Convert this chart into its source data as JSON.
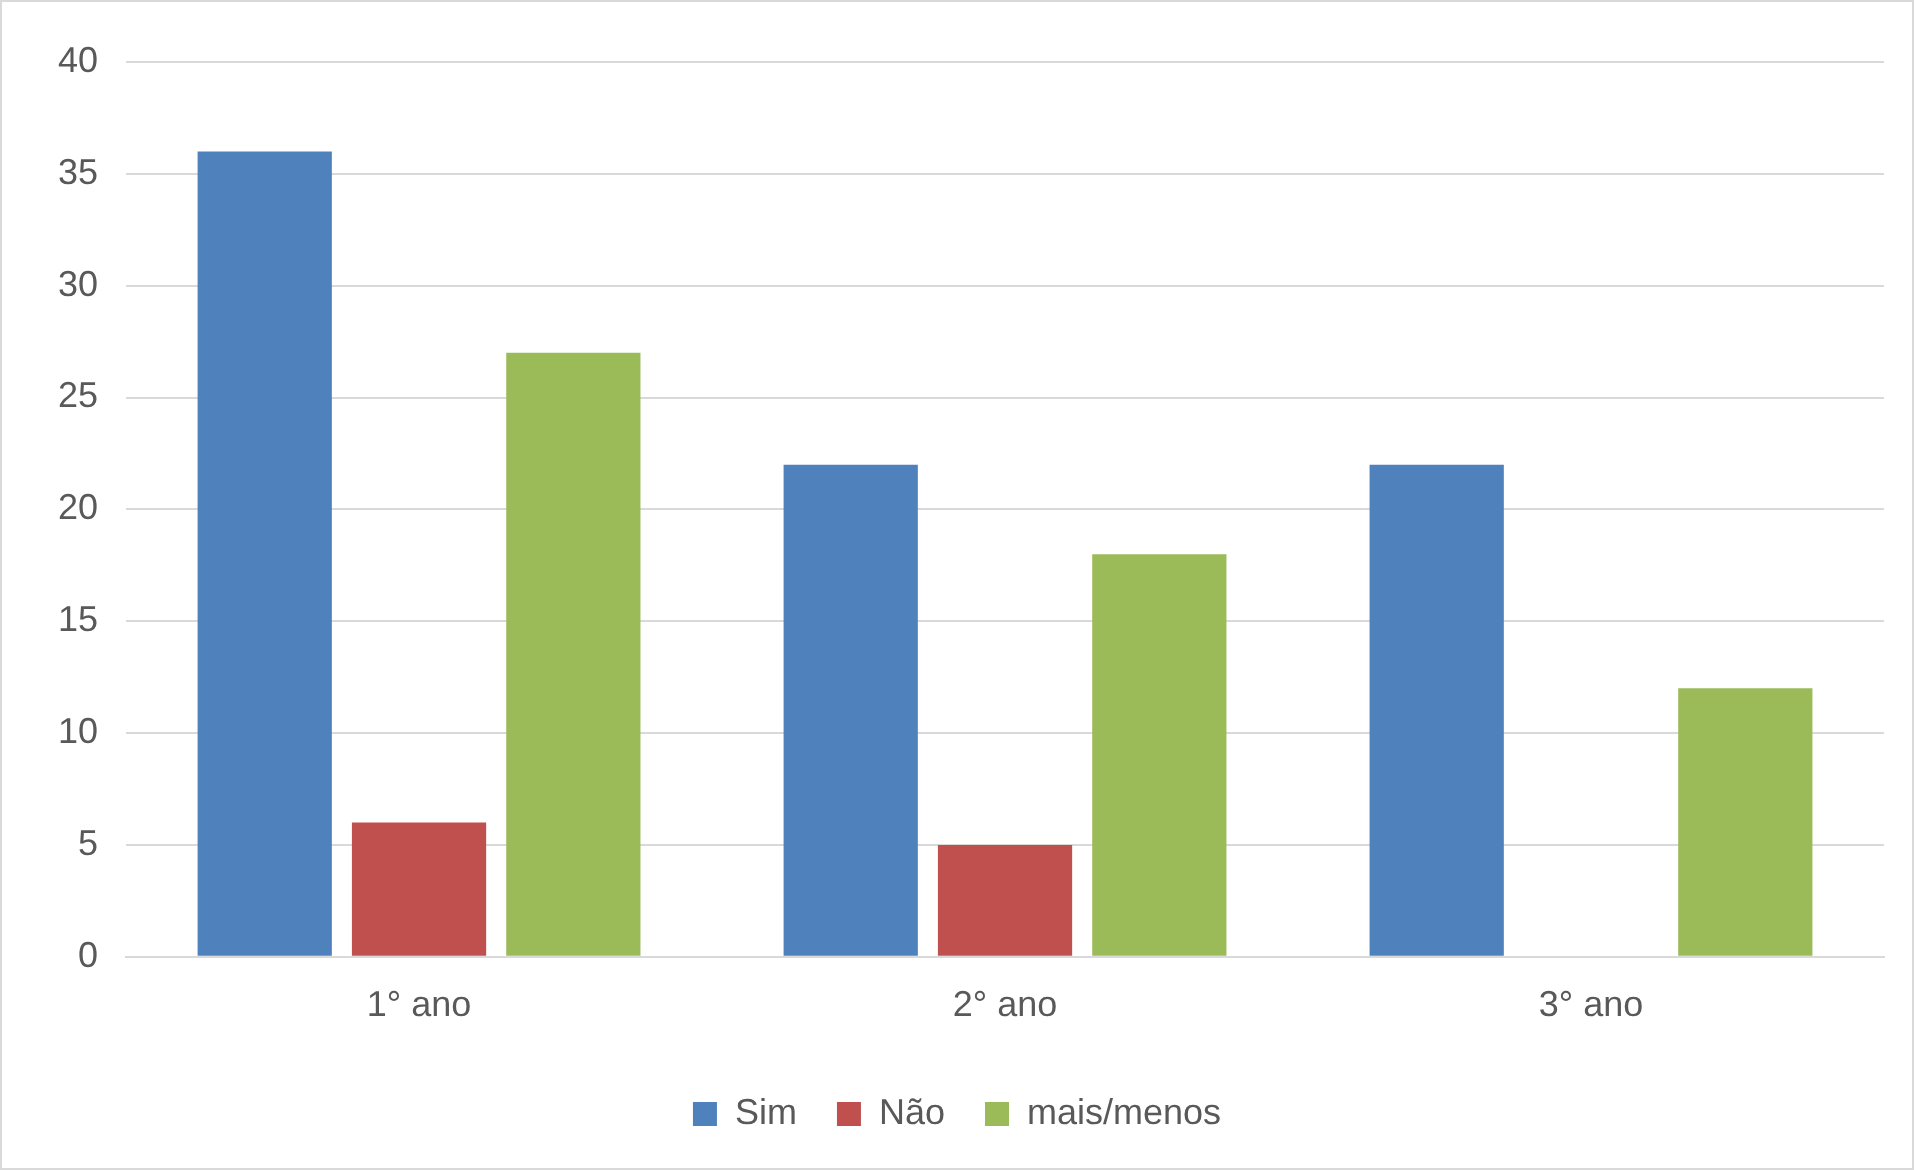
{
  "chart_data": {
    "type": "bar",
    "categories": [
      "1° ano",
      "2° ano",
      "3° ano"
    ],
    "series": [
      {
        "name": "Sim",
        "color": "#4f81bd",
        "values": [
          36,
          22,
          22
        ]
      },
      {
        "name": "Não",
        "color": "#c0504d",
        "values": [
          6,
          5,
          0
        ]
      },
      {
        "name": "mais/menos",
        "color": "#9bbb59",
        "values": [
          27,
          18,
          12
        ]
      }
    ],
    "ylim": [
      0,
      40
    ],
    "yticks": [
      0,
      5,
      10,
      15,
      20,
      25,
      30,
      35,
      40
    ],
    "grid": "y",
    "legend": "bottom"
  }
}
